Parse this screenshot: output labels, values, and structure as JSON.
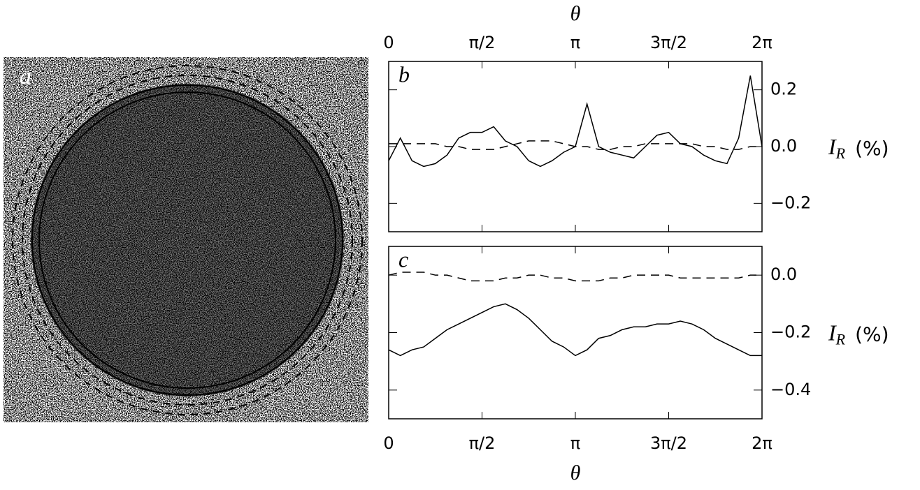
{
  "image": {
    "label": "a"
  },
  "chart_data": [
    {
      "type": "line",
      "panel_label": "b",
      "xlabel": "θ",
      "xlabel_side": "top",
      "ylabel": {
        "symbol": "I",
        "subscript": "R",
        "unit": "(%)"
      },
      "x": [
        0,
        0.1963,
        0.3927,
        0.589,
        0.7854,
        0.9817,
        1.1781,
        1.3744,
        1.5708,
        1.7671,
        1.9635,
        2.1598,
        2.3562,
        2.5525,
        2.7489,
        2.9452,
        3.1416,
        3.3379,
        3.5343,
        3.7306,
        3.927,
        4.1233,
        4.3197,
        4.516,
        4.7124,
        4.9087,
        5.1051,
        5.3014,
        5.4978,
        5.6941,
        5.8905,
        6.0868,
        6.2832
      ],
      "series": [
        {
          "color": "#000000",
          "dashed": false,
          "values": [
            -0.05,
            0.03,
            -0.05,
            -0.07,
            -0.06,
            -0.03,
            0.03,
            0.05,
            0.05,
            0.07,
            0.02,
            0.0,
            -0.05,
            -0.07,
            -0.05,
            -0.02,
            0.0,
            0.15,
            0.0,
            -0.02,
            -0.03,
            -0.04,
            0.0,
            0.04,
            0.05,
            0.01,
            0.0,
            -0.03,
            -0.05,
            -0.06,
            0.03,
            0.25,
            0.0
          ]
        },
        {
          "color": "#000000",
          "dashed": true,
          "values": [
            0.01,
            0.01,
            0.01,
            0.01,
            0.01,
            0.0,
            0.0,
            -0.01,
            -0.01,
            -0.01,
            0.0,
            0.01,
            0.02,
            0.02,
            0.02,
            0.01,
            0.0,
            0.0,
            -0.01,
            -0.01,
            0.0,
            0.0,
            0.01,
            0.01,
            0.01,
            0.01,
            0.01,
            0.0,
            0.0,
            -0.01,
            -0.01,
            0.0,
            0.0
          ]
        }
      ],
      "xlim": [
        0,
        6.2832
      ],
      "xticks": [
        0,
        {
          "value": 1.5708,
          "label": "π/2"
        },
        {
          "value": 3.1416,
          "label": "π"
        },
        {
          "value": 4.7124,
          "label": "3π/2"
        },
        {
          "value": 6.2832,
          "label": "2π"
        }
      ],
      "ylim": [
        -0.3,
        0.3
      ],
      "yticks": [
        {
          "value": 0.2,
          "label": "0.2"
        },
        {
          "value": 0.0,
          "label": "0.0"
        },
        {
          "value": -0.2,
          "label": "−0.2"
        }
      ]
    },
    {
      "type": "line",
      "panel_label": "c",
      "xlabel": "θ",
      "xlabel_side": "bottom",
      "ylabel": {
        "symbol": "I",
        "subscript": "R",
        "unit": "(%)"
      },
      "x": [
        0,
        0.1963,
        0.3927,
        0.589,
        0.7854,
        0.9817,
        1.1781,
        1.3744,
        1.5708,
        1.7671,
        1.9635,
        2.1598,
        2.3562,
        2.5525,
        2.7489,
        2.9452,
        3.1416,
        3.3379,
        3.5343,
        3.7306,
        3.927,
        4.1233,
        4.3197,
        4.516,
        4.7124,
        4.9087,
        5.1051,
        5.3014,
        5.4978,
        5.6941,
        5.8905,
        6.0868,
        6.2832
      ],
      "series": [
        {
          "color": "#000000",
          "dashed": false,
          "values": [
            -0.26,
            -0.28,
            -0.26,
            -0.25,
            -0.22,
            -0.19,
            -0.17,
            -0.15,
            -0.13,
            -0.11,
            -0.1,
            -0.12,
            -0.15,
            -0.19,
            -0.23,
            -0.25,
            -0.28,
            -0.26,
            -0.22,
            -0.21,
            -0.19,
            -0.18,
            -0.18,
            -0.17,
            -0.17,
            -0.16,
            -0.17,
            -0.19,
            -0.22,
            -0.24,
            -0.26,
            -0.28,
            -0.28
          ]
        },
        {
          "color": "#000000",
          "dashed": true,
          "values": [
            0.0,
            0.01,
            0.01,
            0.01,
            0.0,
            0.0,
            -0.01,
            -0.02,
            -0.02,
            -0.02,
            -0.01,
            -0.01,
            0.0,
            0.0,
            -0.01,
            -0.01,
            -0.02,
            -0.02,
            -0.02,
            -0.01,
            -0.01,
            0.0,
            0.0,
            0.0,
            0.0,
            -0.01,
            -0.01,
            -0.01,
            -0.01,
            -0.01,
            -0.01,
            0.0,
            0.0
          ]
        }
      ],
      "xlim": [
        0,
        6.2832
      ],
      "xticks": [
        0,
        {
          "value": 1.5708,
          "label": "π/2"
        },
        {
          "value": 3.1416,
          "label": "π"
        },
        {
          "value": 4.7124,
          "label": "3π/2"
        },
        {
          "value": 6.2832,
          "label": "2π"
        }
      ],
      "ylim": [
        -0.5,
        0.1
      ],
      "yticks": [
        {
          "value": 0.0,
          "label": "0.0"
        },
        {
          "value": -0.2,
          "label": "−0.2"
        },
        {
          "value": -0.4,
          "label": "−0.4"
        }
      ]
    }
  ]
}
